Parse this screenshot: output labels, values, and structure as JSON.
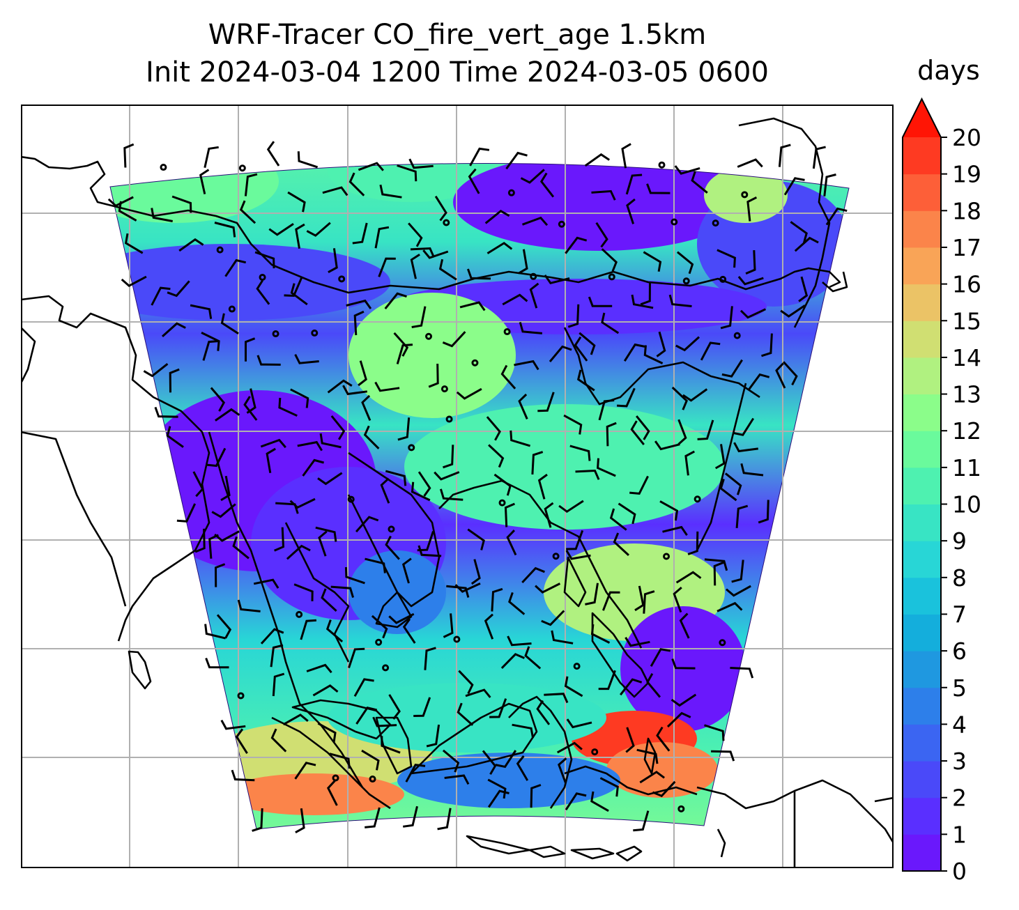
{
  "title": {
    "line1": "WRF-Tracer CO_fire_vert_age 1.5km",
    "line2": "Init 2024-03-04 1200 Time 2024-03-05 0600"
  },
  "colorbar": {
    "unit": "days",
    "extend": "max",
    "min": 0,
    "max": 20,
    "ticks": [
      "0",
      "1",
      "2",
      "3",
      "4",
      "5",
      "6",
      "7",
      "8",
      "9",
      "10",
      "11",
      "12",
      "13",
      "14",
      "15",
      "16",
      "17",
      "18",
      "19",
      "20"
    ],
    "colors": [
      "#6a18fc",
      "#5a2fff",
      "#4a49f9",
      "#3b65f2",
      "#2d7fea",
      "#1f98e0",
      "#14aedc",
      "#1ac2dc",
      "#28d6d6",
      "#38e4c4",
      "#4ef1b0",
      "#6afa9c",
      "#8bfd8a",
      "#b0f180",
      "#d0df72",
      "#ebc366",
      "#f9a457",
      "#fb844a",
      "#fd5f38",
      "#fe3a22",
      "#ff1505"
    ]
  },
  "map": {
    "features": [
      "coastlines",
      "lat-lon gridlines",
      "wind barbs",
      "domain outline"
    ],
    "gridline_color": "#b0b0b0",
    "coastline_color": "#000000"
  }
}
